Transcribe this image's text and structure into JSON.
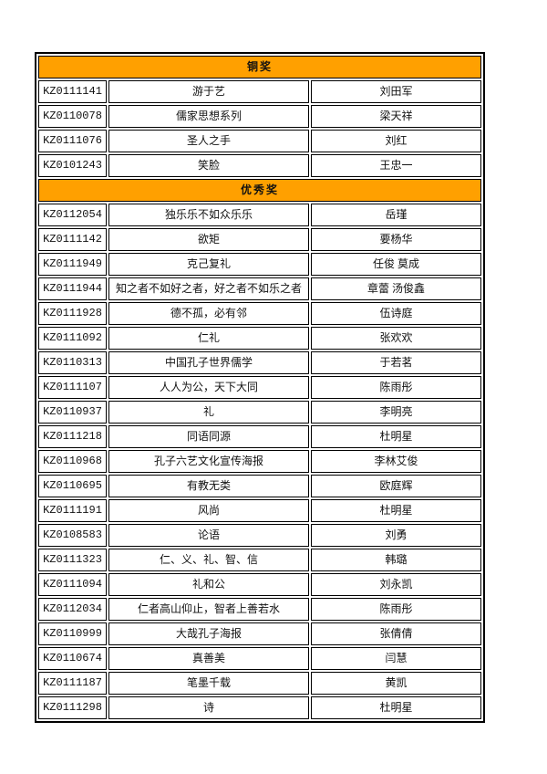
{
  "colors": {
    "section_header_bg": "#FFA000",
    "border": "#000000",
    "text": "#111111",
    "page_bg": "#FFFFFF"
  },
  "table": {
    "sections": [
      {
        "title": "铜奖",
        "rows": [
          [
            "KZ0111141",
            "游于艺",
            "刘田军"
          ],
          [
            "KZ0110078",
            "儒家思想系列",
            "梁天祥"
          ],
          [
            "KZ0111076",
            "圣人之手",
            "刘红"
          ],
          [
            "KZ0101243",
            "笑脸",
            "王忠一"
          ]
        ]
      },
      {
        "title": "优秀奖",
        "rows": [
          [
            "KZ0112054",
            "独乐乐不如众乐乐",
            "岳瑾"
          ],
          [
            "KZ0111142",
            "欲矩",
            "要杨华"
          ],
          [
            "KZ0111949",
            "克己复礼",
            "任俊 莫成"
          ],
          [
            "KZ0111944",
            "知之者不如好之者，好之者不如乐之者",
            "章蕾 汤俊鑫"
          ],
          [
            "KZ0111928",
            "德不孤，必有邻",
            "伍诗庭"
          ],
          [
            "KZ0111092",
            "仁礼",
            "张欢欢"
          ],
          [
            "KZ0110313",
            "中国孔子世界儒学",
            "于若茗"
          ],
          [
            "KZ0111107",
            "人人为公，天下大同",
            "陈雨彤"
          ],
          [
            "KZ0110937",
            "礼",
            "李明亮"
          ],
          [
            "KZ0111218",
            "同语同源",
            "杜明星"
          ],
          [
            "KZ0110968",
            "孔子六艺文化宣传海报",
            "李林艾俊"
          ],
          [
            "KZ0110695",
            "有教无类",
            "欧庭辉"
          ],
          [
            "KZ0111191",
            "风尚",
            "杜明星"
          ],
          [
            "KZ0108583",
            "论语",
            "刘勇"
          ],
          [
            "KZ0111323",
            "仁、义、礼、智、信",
            "韩璐"
          ],
          [
            "KZ0111094",
            "礼和公",
            "刘永凯"
          ],
          [
            "KZ0112034",
            "仁者高山仰止，智者上善若水",
            "陈雨彤"
          ],
          [
            "KZ0110999",
            "大哉孔子海报",
            "张倩倩"
          ],
          [
            "KZ0110674",
            "真善美",
            "闫慧"
          ],
          [
            "KZ0111187",
            "笔墨千载",
            "黄凯"
          ],
          [
            "KZ0111298",
            "诗",
            "杜明星"
          ]
        ]
      }
    ]
  }
}
